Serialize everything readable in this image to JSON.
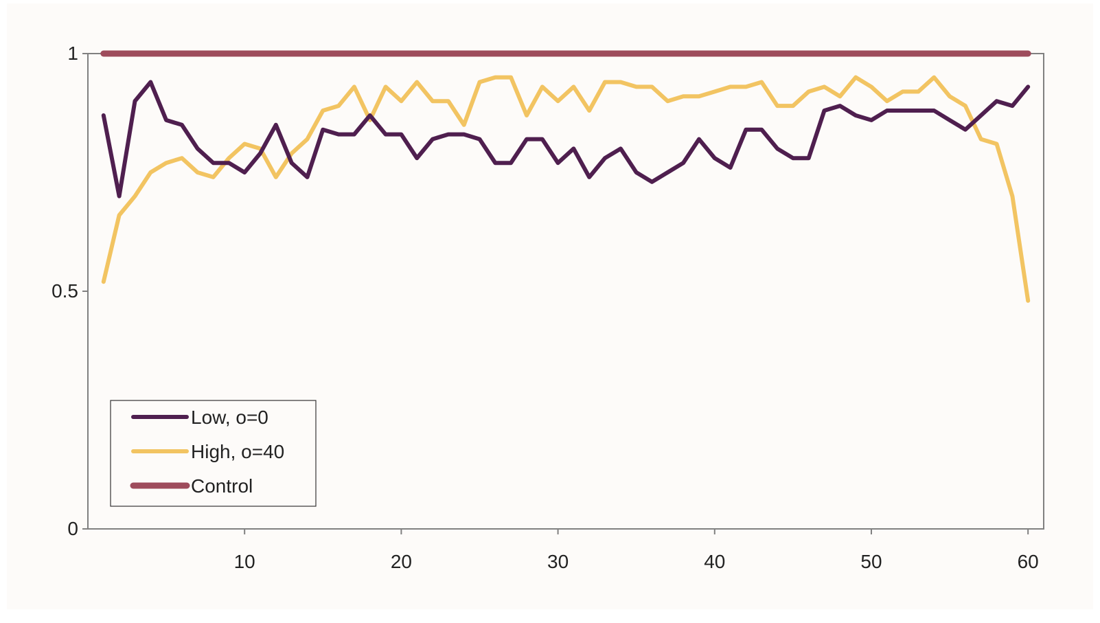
{
  "chart_data": {
    "type": "line",
    "title": "",
    "xlabel": "",
    "ylabel": "",
    "xlim": [
      0,
      61
    ],
    "ylim": [
      0,
      1
    ],
    "x_ticks": [
      10,
      20,
      30,
      40,
      50,
      60
    ],
    "x_tick_labels": [
      "10",
      "20",
      "30",
      "40",
      "50",
      "60"
    ],
    "y_ticks": [
      0,
      0.5,
      1
    ],
    "y_tick_labels": [
      "0",
      "0.5",
      "1"
    ],
    "grid": false,
    "legend_position": "bottom-left",
    "x": [
      1,
      2,
      3,
      4,
      5,
      6,
      7,
      8,
      9,
      10,
      11,
      12,
      13,
      14,
      15,
      16,
      17,
      18,
      19,
      20,
      21,
      22,
      23,
      24,
      25,
      26,
      27,
      28,
      29,
      30,
      31,
      32,
      33,
      34,
      35,
      36,
      37,
      38,
      39,
      40,
      41,
      42,
      43,
      44,
      45,
      46,
      47,
      48,
      49,
      50,
      51,
      52,
      53,
      54,
      55,
      56,
      57,
      58,
      59,
      60
    ],
    "series": [
      {
        "name": "Low, o=0",
        "color": "#4f1f4f",
        "values": [
          0.87,
          0.7,
          0.9,
          0.94,
          0.86,
          0.85,
          0.8,
          0.77,
          0.77,
          0.75,
          0.79,
          0.85,
          0.77,
          0.74,
          0.84,
          0.83,
          0.83,
          0.87,
          0.83,
          0.83,
          0.78,
          0.82,
          0.83,
          0.83,
          0.82,
          0.77,
          0.77,
          0.82,
          0.82,
          0.77,
          0.8,
          0.74,
          0.78,
          0.8,
          0.75,
          0.73,
          0.75,
          0.77,
          0.82,
          0.78,
          0.76,
          0.84,
          0.84,
          0.8,
          0.78,
          0.78,
          0.88,
          0.89,
          0.87,
          0.86,
          0.88,
          0.88,
          0.88,
          0.88,
          0.86,
          0.84,
          0.87,
          0.9,
          0.89,
          0.93
        ]
      },
      {
        "name": "High, o=40",
        "color": "#f2c462",
        "values": [
          0.52,
          0.66,
          0.7,
          0.75,
          0.77,
          0.78,
          0.75,
          0.74,
          0.78,
          0.81,
          0.8,
          0.74,
          0.79,
          0.82,
          0.88,
          0.89,
          0.93,
          0.86,
          0.93,
          0.9,
          0.94,
          0.9,
          0.9,
          0.85,
          0.94,
          0.95,
          0.95,
          0.87,
          0.93,
          0.9,
          0.93,
          0.88,
          0.94,
          0.94,
          0.93,
          0.93,
          0.9,
          0.91,
          0.91,
          0.92,
          0.93,
          0.93,
          0.94,
          0.89,
          0.89,
          0.92,
          0.93,
          0.91,
          0.95,
          0.93,
          0.9,
          0.92,
          0.92,
          0.95,
          0.91,
          0.89,
          0.82,
          0.81,
          0.7,
          0.48
        ]
      },
      {
        "name": "Control",
        "color": "#9e4c5c",
        "values": [
          1,
          1,
          1,
          1,
          1,
          1,
          1,
          1,
          1,
          1,
          1,
          1,
          1,
          1,
          1,
          1,
          1,
          1,
          1,
          1,
          1,
          1,
          1,
          1,
          1,
          1,
          1,
          1,
          1,
          1,
          1,
          1,
          1,
          1,
          1,
          1,
          1,
          1,
          1,
          1,
          1,
          1,
          1,
          1,
          1,
          1,
          1,
          1,
          1,
          1,
          1,
          1,
          1,
          1,
          1,
          1,
          1,
          1,
          1,
          1
        ]
      }
    ]
  }
}
